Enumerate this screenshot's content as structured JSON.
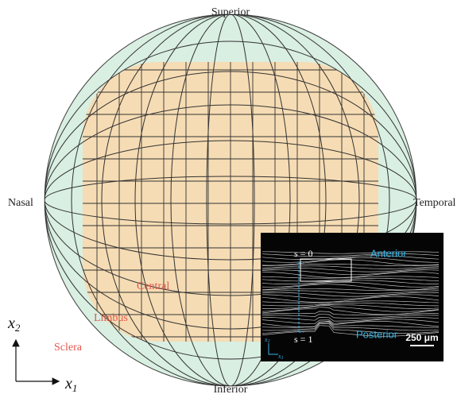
{
  "labels": {
    "superior": "Superior",
    "inferior": "Inferior",
    "nasal": "Nasal",
    "temporal": "Temporal",
    "central": "Central",
    "limbus": "Limbus",
    "sclera": "Sclera"
  },
  "axes": {
    "vertical": {
      "symbol": "x",
      "subscript": "2"
    },
    "horizontal": {
      "symbol": "x",
      "subscript": "1"
    }
  },
  "inset": {
    "top_position": "s = 0",
    "bottom_position": "s = 1",
    "anterior": "Anterior",
    "posterior": "Posterior",
    "scale_bar": "250 μm",
    "axis_vertical": {
      "symbol": "x",
      "subscript": "2"
    },
    "axis_horizontal": {
      "symbol": "x",
      "subscript": "1"
    }
  }
}
